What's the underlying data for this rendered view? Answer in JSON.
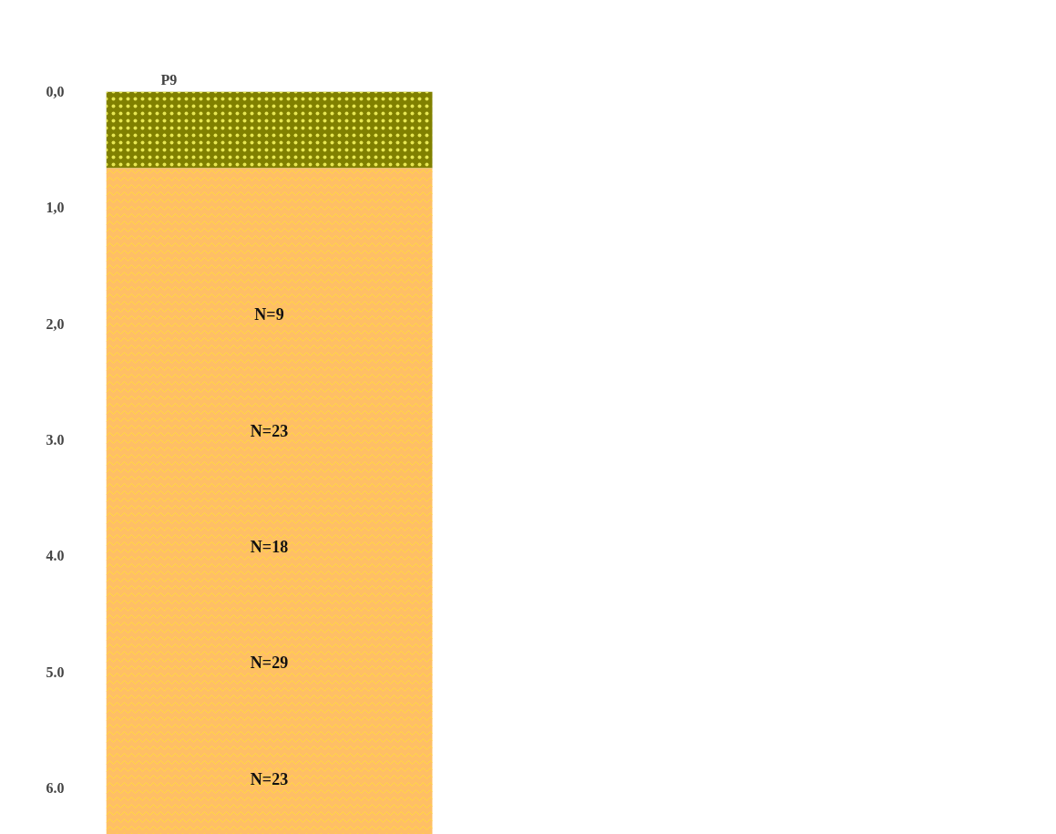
{
  "chart_data": {
    "type": "bar",
    "title": "P9",
    "categories": [
      null
    ],
    "stacked": true,
    "series": [
      {
        "color": "#808000",
        "values": [
          0.66
        ]
      },
      {
        "color": "#ffbf66",
        "values": [
          5.74
        ]
      }
    ],
    "ylim": [
      6.4,
      0
    ],
    "yticks": [
      {
        "value": 0,
        "label": "0,0"
      },
      {
        "value": 1,
        "label": "1,0"
      },
      {
        "value": 2,
        "label": "2,0"
      },
      {
        "value": 3,
        "label": "3.0"
      },
      {
        "value": 4,
        "label": "4.0"
      },
      {
        "value": 5,
        "label": "5.0"
      },
      {
        "value": 6,
        "label": "6.0"
      }
    ],
    "grid": false,
    "annotations": [
      "N=9",
      "N=23",
      "N=18",
      "N=29",
      "N=23"
    ]
  }
}
